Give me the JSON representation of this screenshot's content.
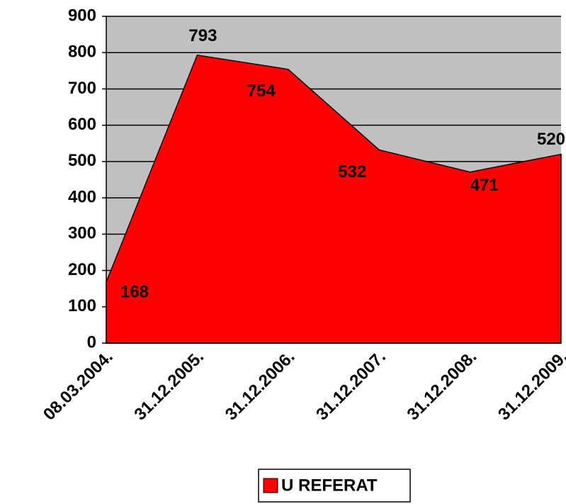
{
  "chart_data": {
    "type": "area",
    "categories": [
      "08.03.2004.",
      "31.12.2005.",
      "31.12.2006.",
      "31.12.2007.",
      "31.12.2008.",
      "31.12.2009."
    ],
    "series": [
      {
        "name": "U REFERAT",
        "color": "#ff0000",
        "values": [
          168,
          793,
          754,
          532,
          471,
          520
        ]
      }
    ],
    "ylim": [
      0,
      900
    ],
    "yticks": [
      0,
      100,
      200,
      300,
      400,
      500,
      600,
      700,
      800,
      900
    ],
    "grid": true,
    "legend": "bottom"
  }
}
